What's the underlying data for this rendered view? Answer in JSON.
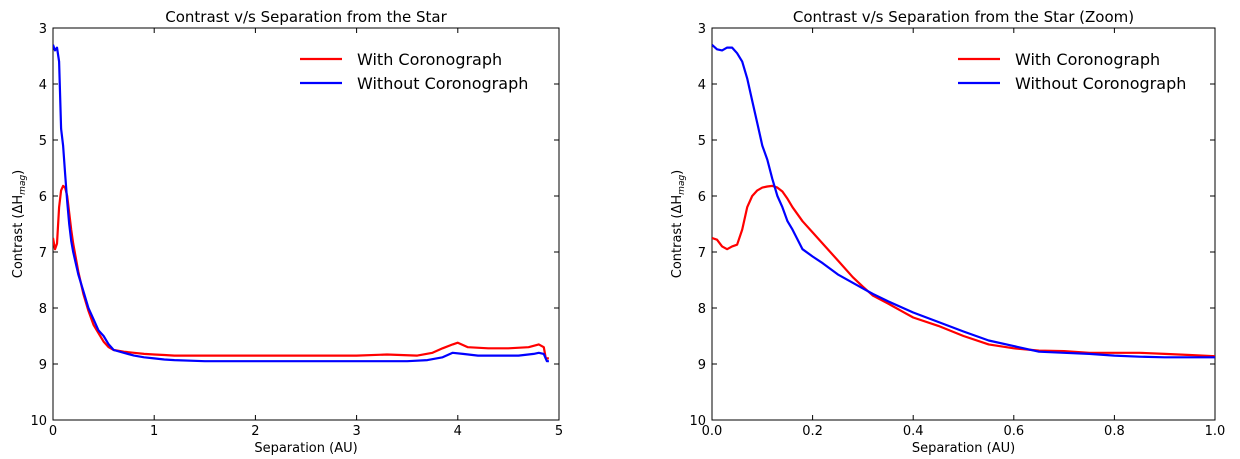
{
  "figure": {
    "colors": {
      "with": "#ff0000",
      "without": "#0000ff",
      "axis": "#000000"
    }
  },
  "chart_data": [
    {
      "type": "line",
      "title": "Contrast v/s Separation from the Star",
      "xlabel": "Separation (AU)",
      "ylabel": "Contrast (ΔH",
      "ylabel_sub": "mag",
      "ylabel_close": ")",
      "xlim": [
        0,
        5
      ],
      "ylim": [
        10,
        3
      ],
      "y_inverted": true,
      "xticks": [
        0,
        1,
        2,
        3,
        4,
        5
      ],
      "xtick_labels": [
        "0",
        "1",
        "2",
        "3",
        "4",
        "5"
      ],
      "yticks": [
        3,
        4,
        5,
        6,
        7,
        8,
        9,
        10
      ],
      "ytick_labels": [
        "3",
        "4",
        "5",
        "6",
        "7",
        "8",
        "9",
        "10"
      ],
      "grid": false,
      "legend_position": "top-right",
      "series": [
        {
          "name": "With Coronograph",
          "color": "#ff0000",
          "x": [
            0,
            0.02,
            0.04,
            0.06,
            0.08,
            0.1,
            0.12,
            0.14,
            0.16,
            0.18,
            0.2,
            0.25,
            0.3,
            0.35,
            0.4,
            0.45,
            0.5,
            0.55,
            0.6,
            0.7,
            0.8,
            0.9,
            1.0,
            1.1,
            1.2,
            1.3,
            1.5,
            1.7,
            2.0,
            2.3,
            2.6,
            3.0,
            3.3,
            3.6,
            3.75,
            3.85,
            3.95,
            4.0,
            4.1,
            4.3,
            4.5,
            4.7,
            4.8,
            4.85,
            4.87,
            4.9
          ],
          "values": [
            6.75,
            6.95,
            6.85,
            6.2,
            5.9,
            5.82,
            5.85,
            6.0,
            6.3,
            6.6,
            6.85,
            7.35,
            7.75,
            8.05,
            8.3,
            8.45,
            8.6,
            8.7,
            8.75,
            8.78,
            8.8,
            8.82,
            8.83,
            8.84,
            8.85,
            8.85,
            8.85,
            8.85,
            8.85,
            8.85,
            8.85,
            8.85,
            8.83,
            8.85,
            8.8,
            8.72,
            8.65,
            8.62,
            8.7,
            8.72,
            8.72,
            8.7,
            8.65,
            8.7,
            8.9,
            8.9
          ]
        },
        {
          "name": "Without Coronograph",
          "color": "#0000ff",
          "x": [
            0,
            0.02,
            0.04,
            0.06,
            0.08,
            0.1,
            0.12,
            0.14,
            0.16,
            0.18,
            0.2,
            0.25,
            0.3,
            0.35,
            0.4,
            0.45,
            0.5,
            0.55,
            0.6,
            0.7,
            0.8,
            0.9,
            1.0,
            1.1,
            1.2,
            1.5,
            2.0,
            2.5,
            3.0,
            3.5,
            3.7,
            3.85,
            3.95,
            4.05,
            4.2,
            4.4,
            4.6,
            4.75,
            4.8,
            4.85,
            4.88,
            4.9
          ],
          "values": [
            3.3,
            3.4,
            3.35,
            3.6,
            4.8,
            5.1,
            5.6,
            6.1,
            6.5,
            6.8,
            7.0,
            7.4,
            7.7,
            8.0,
            8.2,
            8.4,
            8.5,
            8.65,
            8.75,
            8.8,
            8.85,
            8.88,
            8.9,
            8.92,
            8.93,
            8.95,
            8.95,
            8.95,
            8.95,
            8.95,
            8.93,
            8.88,
            8.8,
            8.82,
            8.85,
            8.85,
            8.85,
            8.82,
            8.8,
            8.82,
            8.95,
            8.95
          ]
        }
      ]
    },
    {
      "type": "line",
      "title": "Contrast v/s Separation from the Star (Zoom)",
      "xlabel": "Separation (AU)",
      "ylabel": "Contrast (ΔH",
      "ylabel_sub": "mag",
      "ylabel_close": ")",
      "xlim": [
        0.0,
        1.0
      ],
      "ylim": [
        10,
        3
      ],
      "y_inverted": true,
      "xticks": [
        0.0,
        0.2,
        0.4,
        0.6,
        0.8,
        1.0
      ],
      "xtick_labels": [
        "0.0",
        "0.2",
        "0.4",
        "0.6",
        "0.8",
        "1.0"
      ],
      "yticks": [
        3,
        4,
        5,
        6,
        7,
        8,
        9,
        10
      ],
      "ytick_labels": [
        "3",
        "4",
        "5",
        "6",
        "7",
        "8",
        "9",
        "10"
      ],
      "grid": false,
      "legend_position": "top-right",
      "series": [
        {
          "name": "With Coronograph",
          "color": "#ff0000",
          "x": [
            0.0,
            0.01,
            0.02,
            0.03,
            0.04,
            0.05,
            0.06,
            0.07,
            0.08,
            0.09,
            0.1,
            0.11,
            0.12,
            0.13,
            0.14,
            0.15,
            0.16,
            0.18,
            0.2,
            0.22,
            0.25,
            0.28,
            0.3,
            0.32,
            0.35,
            0.38,
            0.4,
            0.45,
            0.5,
            0.55,
            0.6,
            0.65,
            0.7,
            0.75,
            0.8,
            0.85,
            0.9,
            0.95,
            1.0
          ],
          "values": [
            6.75,
            6.78,
            6.9,
            6.95,
            6.9,
            6.87,
            6.6,
            6.2,
            6.0,
            5.9,
            5.85,
            5.83,
            5.82,
            5.85,
            5.92,
            6.05,
            6.2,
            6.45,
            6.65,
            6.85,
            7.15,
            7.45,
            7.62,
            7.78,
            7.92,
            8.07,
            8.17,
            8.32,
            8.5,
            8.65,
            8.72,
            8.76,
            8.77,
            8.8,
            8.8,
            8.8,
            8.82,
            8.84,
            8.86
          ]
        },
        {
          "name": "Without Coronograph",
          "color": "#0000ff",
          "x": [
            0.0,
            0.01,
            0.02,
            0.03,
            0.04,
            0.05,
            0.06,
            0.07,
            0.08,
            0.09,
            0.1,
            0.11,
            0.12,
            0.13,
            0.14,
            0.15,
            0.16,
            0.18,
            0.2,
            0.22,
            0.25,
            0.28,
            0.3,
            0.32,
            0.35,
            0.38,
            0.4,
            0.45,
            0.5,
            0.55,
            0.6,
            0.65,
            0.7,
            0.75,
            0.8,
            0.85,
            0.9,
            0.95,
            1.0
          ],
          "values": [
            3.3,
            3.38,
            3.4,
            3.35,
            3.35,
            3.45,
            3.6,
            3.9,
            4.3,
            4.7,
            5.1,
            5.35,
            5.7,
            6.0,
            6.2,
            6.45,
            6.6,
            6.95,
            7.08,
            7.2,
            7.4,
            7.55,
            7.65,
            7.75,
            7.88,
            8.0,
            8.08,
            8.25,
            8.42,
            8.58,
            8.68,
            8.78,
            8.8,
            8.82,
            8.85,
            8.87,
            8.88,
            8.88,
            8.88
          ]
        }
      ]
    }
  ]
}
